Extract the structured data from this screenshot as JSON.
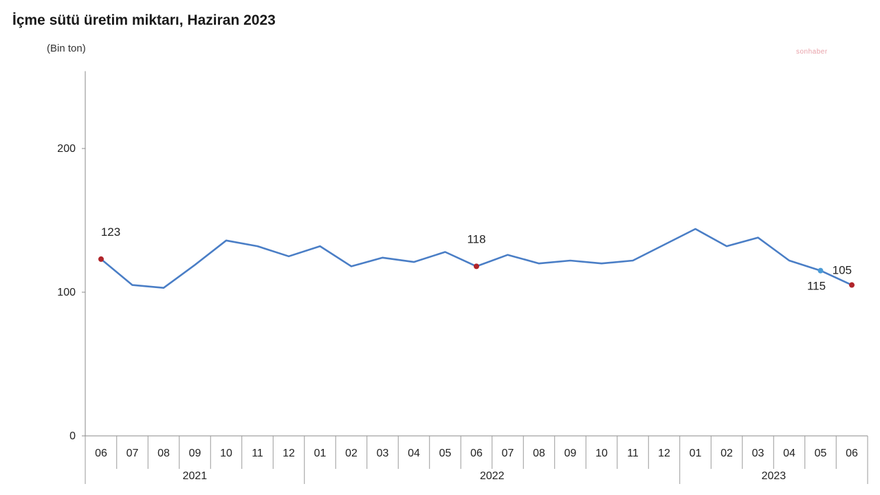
{
  "chart_data": {
    "type": "line",
    "title": "İçme sütü üretim miktarı, Haziran 2023",
    "ylabel": "(Bin ton)",
    "watermark": "sonhaber",
    "ylim": [
      0,
      250
    ],
    "yticks": [
      0,
      100,
      200
    ],
    "categories": [
      "06",
      "07",
      "08",
      "09",
      "10",
      "11",
      "12",
      "01",
      "02",
      "03",
      "04",
      "05",
      "06",
      "07",
      "08",
      "09",
      "10",
      "11",
      "12",
      "01",
      "02",
      "03",
      "04",
      "05",
      "06"
    ],
    "year_groups": [
      {
        "label": "2021",
        "start": 0,
        "end": 6
      },
      {
        "label": "2022",
        "start": 7,
        "end": 18
      },
      {
        "label": "2023",
        "start": 19,
        "end": 24
      }
    ],
    "series": [
      {
        "color": "#4a7ec6",
        "values": [
          123,
          105,
          103,
          119,
          136,
          132,
          125,
          132,
          118,
          124,
          121,
          128,
          118,
          126,
          120,
          122,
          120,
          122,
          133,
          144,
          132,
          138,
          122,
          115,
          105
        ]
      }
    ],
    "highlights": [
      {
        "index": 0,
        "label": "123",
        "color": "#b0242a"
      },
      {
        "index": 12,
        "label": "118",
        "color": "#b0242a"
      },
      {
        "index": 23,
        "label": "115",
        "color": "#4a9ad6"
      },
      {
        "index": 24,
        "label": "105",
        "color": "#b0242a"
      }
    ],
    "grid": false
  }
}
